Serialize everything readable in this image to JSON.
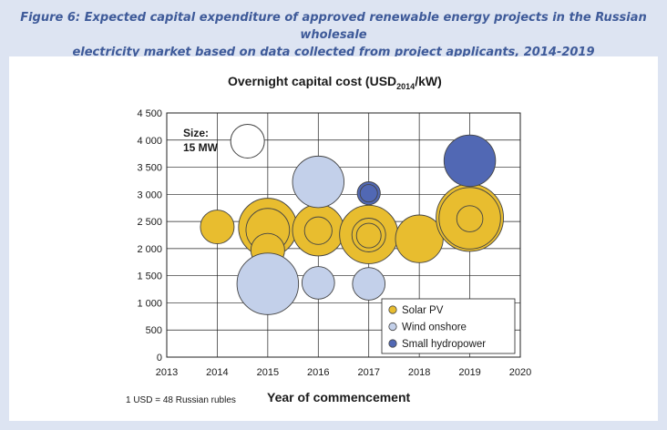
{
  "figure": {
    "title_line1": "Figure 6: Expected capital expenditure of approved renewable energy projects in the Russian wholesale",
    "title_line2": "electricity market based on data collected from project applicants, 2014-2019"
  },
  "chart_data": {
    "type": "scatter",
    "subtype": "bubble",
    "title": "Overnight capital cost (USD",
    "title_subscript": "2014",
    "title_suffix": "/kW)",
    "xlabel": "Year of commencement",
    "ylabel": "",
    "xlim": [
      2013,
      2020
    ],
    "ylim": [
      0,
      4500
    ],
    "x_ticks": [
      "2013",
      "2014",
      "2015",
      "2016",
      "2017",
      "2018",
      "2019",
      "2020"
    ],
    "y_ticks": [
      "0",
      "500",
      "1000",
      "1500",
      "2000",
      "2500",
      "3000",
      "3500",
      "4000",
      "4500"
    ],
    "grid": true,
    "note": "1 USD = 48 Russian rubles",
    "size_key": {
      "label_line1": "Size:",
      "label_line2": "15 MW",
      "mw": 15,
      "x": 2014.6,
      "y": 3980
    },
    "legend_position": "bottom-right",
    "series": [
      {
        "name": "Solar PV",
        "color": "#e8bd2f",
        "points": [
          {
            "x": 2014,
            "y": 2400,
            "mw": 15
          },
          {
            "x": 2015,
            "y": 2390,
            "mw": 45
          },
          {
            "x": 2015,
            "y": 2340,
            "mw": 25
          },
          {
            "x": 2015,
            "y": 1970,
            "mw": 15
          },
          {
            "x": 2016,
            "y": 2710,
            "mw": 5
          },
          {
            "x": 2016,
            "y": 2340,
            "mw": 35
          },
          {
            "x": 2016,
            "y": 2330,
            "mw": 10
          },
          {
            "x": 2017,
            "y": 2260,
            "mw": 45
          },
          {
            "x": 2017,
            "y": 2250,
            "mw": 15
          },
          {
            "x": 2017,
            "y": 2240,
            "mw": 8
          },
          {
            "x": 2018,
            "y": 2180,
            "mw": 30
          },
          {
            "x": 2019,
            "y": 2570,
            "mw": 60
          },
          {
            "x": 2019,
            "y": 2560,
            "mw": 50
          },
          {
            "x": 2019,
            "y": 2550,
            "mw": 9
          }
        ]
      },
      {
        "name": "Wind onshore",
        "color": "#c3d0ea",
        "points": [
          {
            "x": 2015,
            "y": 1350,
            "mw": 50
          },
          {
            "x": 2016,
            "y": 3230,
            "mw": 35
          },
          {
            "x": 2016,
            "y": 1370,
            "mw": 14
          },
          {
            "x": 2017,
            "y": 1350,
            "mw": 14
          }
        ]
      },
      {
        "name": "Small hydropower",
        "color": "#5168b4",
        "points": [
          {
            "x": 2017,
            "y": 3020,
            "mw": 7
          },
          {
            "x": 2017,
            "y": 3020,
            "mw": 4
          },
          {
            "x": 2019,
            "y": 3620,
            "mw": 35
          }
        ]
      }
    ]
  }
}
